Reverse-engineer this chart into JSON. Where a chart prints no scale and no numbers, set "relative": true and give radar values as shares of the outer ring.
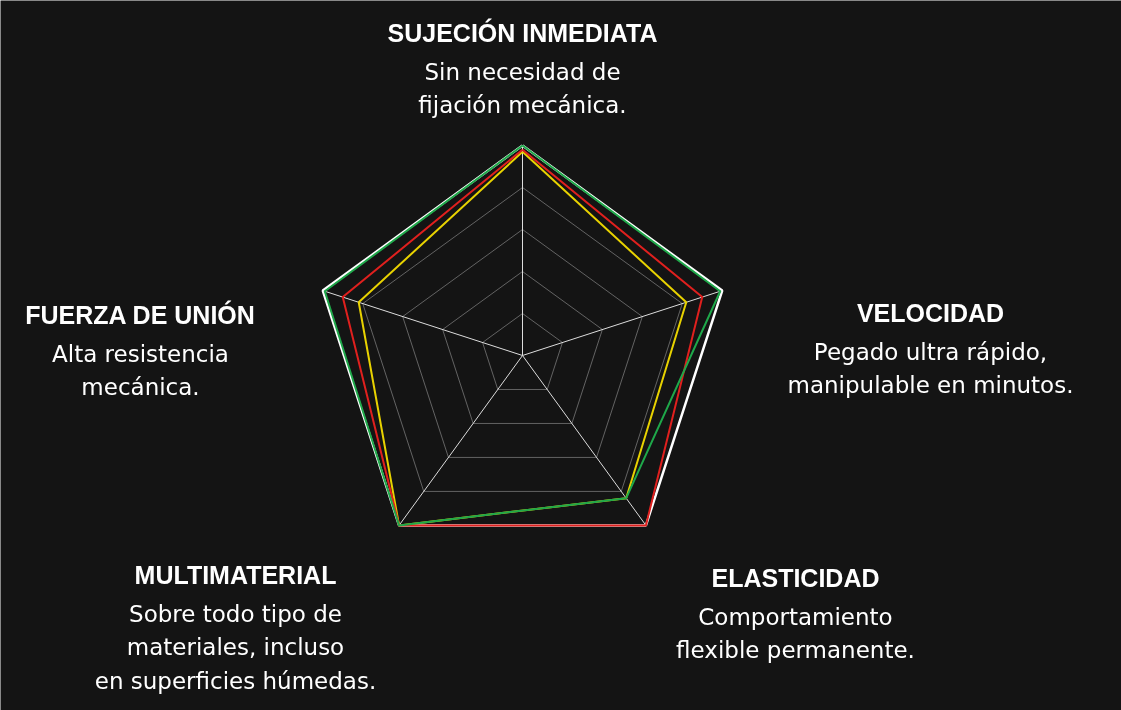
{
  "chart_data": {
    "type": "radar",
    "relative": true,
    "grid": true,
    "categories": [
      "SUJECIÓN INMEDIATA",
      "VELOCIDAD",
      "ELASTICIDAD",
      "MULTIMATERIAL",
      "FUERZA DE UNIÓN"
    ],
    "annotations": [
      "Sin necesidad de\nfijación mecánica.",
      "Pegado ultra rápido,\nmanipulable en minutos.",
      "Comportamiento\nflexible permanente.",
      "Sobre todo tipo de\nmateriales, incluso\nen superficies húmedas.",
      "Alta resistencia\nmecánica."
    ],
    "series": [
      {
        "color": "#e8d200",
        "values": [
          0.97,
          0.82,
          0.84,
          1.0,
          0.82
        ]
      },
      {
        "color": "#e0201e",
        "values": [
          0.98,
          0.9,
          1.0,
          1.0,
          0.9
        ]
      },
      {
        "color": "#1fa84a",
        "values": [
          1.0,
          0.99,
          0.84,
          1.0,
          0.99
        ]
      }
    ]
  }
}
